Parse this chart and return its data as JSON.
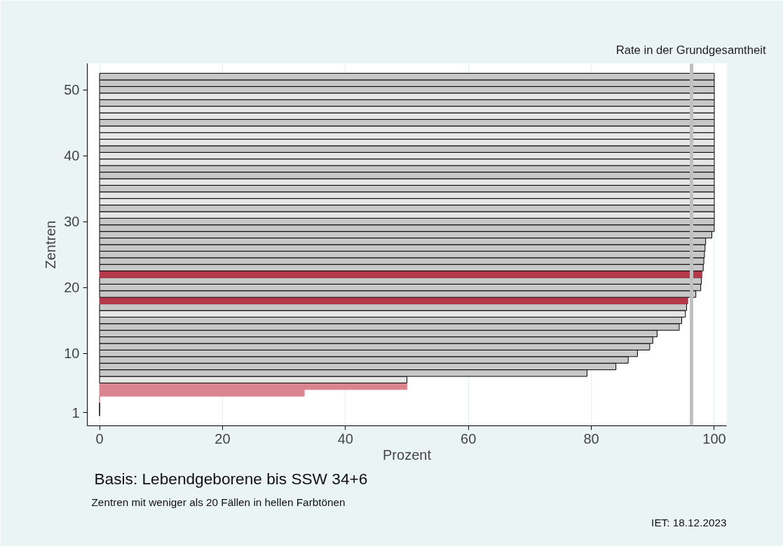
{
  "chart_data": {
    "type": "bar",
    "orientation": "horizontal",
    "xlabel": "Prozent",
    "ylabel": "Zentren",
    "x": [
      1,
      2,
      3,
      4,
      5,
      6,
      7,
      8,
      9,
      10,
      11,
      12,
      13,
      14,
      15,
      16,
      17,
      18,
      19,
      20,
      21,
      22,
      23,
      24,
      25,
      26,
      27,
      28,
      29,
      30,
      31,
      32,
      33,
      34,
      35,
      36,
      37,
      38,
      39,
      40,
      41,
      42,
      43,
      44,
      45,
      46,
      47,
      48,
      49,
      50,
      51,
      52
    ],
    "values": [
      0,
      0,
      0,
      33.3,
      50,
      50,
      79.3,
      84,
      86,
      87.5,
      89.5,
      90,
      90.7,
      94.3,
      94.7,
      95.3,
      95.5,
      95.7,
      97,
      97.8,
      97.9,
      98,
      98.2,
      98.3,
      98.4,
      98.5,
      98.6,
      99.6,
      100,
      100,
      100,
      100,
      100,
      100,
      100,
      100,
      100,
      100,
      100,
      100,
      100,
      100,
      100,
      100,
      100,
      100,
      100,
      100,
      100,
      100,
      100,
      100
    ],
    "colors": [
      "#000000",
      "#000000",
      "#d9848f",
      "#d9848f",
      "#d9848f",
      "#e6e6e6",
      "#c8c8c8",
      "#c8c8c8",
      "#c8c8c8",
      "#c8c8c8",
      "#c8c8c8",
      "#c8c8c8",
      "#c8c8c8",
      "#c8c8c8",
      "#c8c8c8",
      "#e6e6e6",
      "#c8c8c8",
      "#b5394b",
      "#c8c8c8",
      "#c8c8c8",
      "#c8c8c8",
      "#b5394b",
      "#c8c8c8",
      "#c8c8c8",
      "#c8c8c8",
      "#c8c8c8",
      "#c8c8c8",
      "#c8c8c8",
      "#c8c8c8",
      "#c8c8c8",
      "#e6e6e6",
      "#c8c8c8",
      "#e6e6e6",
      "#e6e6e6",
      "#c8c8c8",
      "#e6e6e6",
      "#c8c8c8",
      "#c8c8c8",
      "#e6e6e6",
      "#e6e6e6",
      "#c8c8c8",
      "#e6e6e6",
      "#e6e6e6",
      "#e6e6e6",
      "#c8c8c8",
      "#e6e6e6",
      "#e6e6e6",
      "#c8c8c8",
      "#e6e6e6",
      "#c8c8c8",
      "#c8c8c8",
      "#c8c8c8"
    ],
    "xlim": [
      -2,
      102
    ],
    "xticks": [
      0,
      20,
      40,
      60,
      80,
      100
    ],
    "ylim": [
      -1,
      54
    ],
    "yticks": [
      1,
      10,
      20,
      30,
      40,
      50
    ],
    "grid": "x",
    "ref_lines": [
      {
        "axis": "x",
        "value": 96.3,
        "label": "Rate in der Grundgesamtheit",
        "color": "#c0c0c0"
      }
    ],
    "annotations": [
      "Basis: Lebendgeborene bis SSW 34+6",
      "Zentren mit weniger als 20 Fällen in hellen Farbtönen",
      "IET: 18.12.2023"
    ]
  }
}
